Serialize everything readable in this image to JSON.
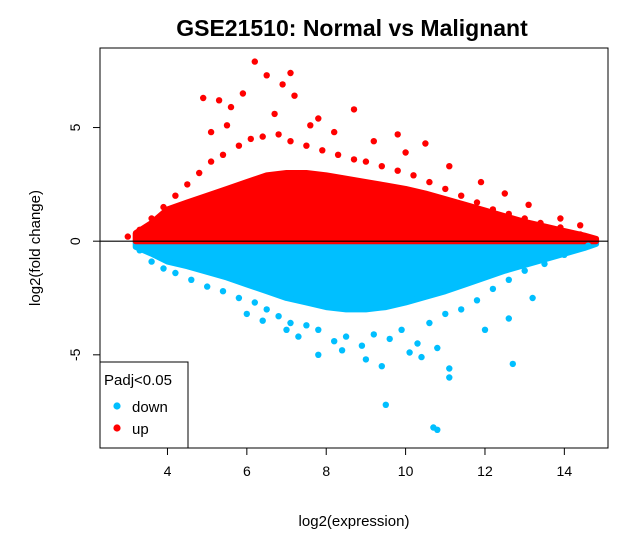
{
  "chart_data": {
    "type": "scatter",
    "title": "GSE21510: Normal vs Malignant",
    "xlabel": "log2(expression)",
    "ylabel": "log2(fold change)",
    "xlim": [
      2.3,
      15.1
    ],
    "ylim": [
      -9.1,
      8.5
    ],
    "x_ticks": [
      "4",
      "6",
      "8",
      "10",
      "12",
      "14"
    ],
    "y_ticks": [
      "-5",
      "0",
      "5"
    ],
    "hline": 0,
    "grid": false,
    "legend": {
      "title": "Padj<0.05",
      "position": "bottom-left",
      "entries": [
        {
          "label": "down",
          "color": "#00BFFF"
        },
        {
          "label": "up",
          "color": "#FF0000"
        }
      ]
    },
    "series": [
      {
        "name": "down",
        "color": "#00BFFF",
        "points": [
          [
            3.3,
            -0.4
          ],
          [
            3.6,
            -0.9
          ],
          [
            3.9,
            -1.2
          ],
          [
            4.2,
            -1.4
          ],
          [
            4.6,
            -1.7
          ],
          [
            5.0,
            -2.0
          ],
          [
            5.4,
            -2.2
          ],
          [
            5.8,
            -2.5
          ],
          [
            6.2,
            -2.7
          ],
          [
            6.5,
            -3.0
          ],
          [
            6.8,
            -3.3
          ],
          [
            7.1,
            -3.6
          ],
          [
            7.5,
            -3.7
          ],
          [
            7.8,
            -3.9
          ],
          [
            8.2,
            -4.4
          ],
          [
            8.5,
            -4.2
          ],
          [
            8.9,
            -4.6
          ],
          [
            9.2,
            -4.1
          ],
          [
            9.6,
            -4.3
          ],
          [
            9.9,
            -3.9
          ],
          [
            10.3,
            -4.5
          ],
          [
            10.6,
            -3.6
          ],
          [
            11.0,
            -3.2
          ],
          [
            11.4,
            -3.0
          ],
          [
            11.8,
            -2.6
          ],
          [
            12.2,
            -2.1
          ],
          [
            12.6,
            -1.7
          ],
          [
            13.0,
            -1.3
          ],
          [
            13.5,
            -1.0
          ],
          [
            14.0,
            -0.6
          ],
          [
            14.6,
            -0.2
          ],
          [
            7.8,
            -5.0
          ],
          [
            8.4,
            -4.8
          ],
          [
            9.0,
            -5.2
          ],
          [
            9.4,
            -5.5
          ],
          [
            10.1,
            -4.9
          ],
          [
            10.4,
            -5.1
          ],
          [
            10.8,
            -4.7
          ],
          [
            11.1,
            -5.6
          ],
          [
            11.1,
            -6.0
          ],
          [
            12.7,
            -5.4
          ],
          [
            9.5,
            -7.2
          ],
          [
            10.7,
            -8.2
          ],
          [
            10.8,
            -8.3
          ],
          [
            12.0,
            -3.9
          ],
          [
            12.6,
            -3.4
          ],
          [
            13.2,
            -2.5
          ],
          [
            6.0,
            -3.2
          ],
          [
            6.4,
            -3.5
          ],
          [
            7.0,
            -3.9
          ],
          [
            7.3,
            -4.2
          ]
        ]
      },
      {
        "name": "up",
        "color": "#FF0000",
        "points": [
          [
            3.0,
            0.2
          ],
          [
            3.3,
            0.5
          ],
          [
            3.6,
            1.0
          ],
          [
            3.9,
            1.5
          ],
          [
            4.2,
            2.0
          ],
          [
            4.5,
            2.5
          ],
          [
            4.8,
            3.0
          ],
          [
            5.1,
            3.5
          ],
          [
            5.4,
            3.8
          ],
          [
            5.8,
            4.2
          ],
          [
            6.1,
            4.5
          ],
          [
            6.4,
            4.6
          ],
          [
            6.8,
            4.7
          ],
          [
            7.1,
            4.4
          ],
          [
            7.5,
            4.2
          ],
          [
            7.9,
            4.0
          ],
          [
            8.3,
            3.8
          ],
          [
            8.7,
            3.6
          ],
          [
            9.0,
            3.5
          ],
          [
            9.4,
            3.3
          ],
          [
            9.8,
            3.1
          ],
          [
            10.2,
            2.9
          ],
          [
            10.6,
            2.6
          ],
          [
            11.0,
            2.3
          ],
          [
            11.4,
            2.0
          ],
          [
            11.8,
            1.7
          ],
          [
            12.2,
            1.4
          ],
          [
            12.6,
            1.2
          ],
          [
            13.0,
            1.0
          ],
          [
            13.4,
            0.8
          ],
          [
            13.9,
            0.6
          ],
          [
            14.4,
            0.3
          ],
          [
            14.7,
            0.1
          ],
          [
            4.9,
            6.3
          ],
          [
            5.3,
            6.2
          ],
          [
            5.6,
            5.9
          ],
          [
            5.9,
            6.5
          ],
          [
            6.2,
            7.9
          ],
          [
            6.5,
            7.3
          ],
          [
            6.9,
            6.9
          ],
          [
            7.1,
            7.4
          ],
          [
            7.2,
            6.4
          ],
          [
            7.8,
            5.4
          ],
          [
            8.7,
            5.8
          ],
          [
            9.8,
            4.7
          ],
          [
            10.5,
            4.3
          ],
          [
            11.1,
            3.3
          ],
          [
            11.9,
            2.6
          ],
          [
            12.5,
            2.1
          ],
          [
            13.1,
            1.6
          ],
          [
            13.9,
            1.0
          ],
          [
            14.4,
            0.7
          ],
          [
            5.1,
            4.8
          ],
          [
            5.5,
            5.1
          ],
          [
            6.7,
            5.6
          ],
          [
            7.6,
            5.1
          ],
          [
            8.2,
            4.8
          ],
          [
            9.2,
            4.4
          ],
          [
            10.0,
            3.9
          ]
        ]
      }
    ],
    "density": [
      {
        "x": 3.2,
        "up": 0.35,
        "down": 0.25
      },
      {
        "x": 3.6,
        "up": 0.8,
        "down": 0.55
      },
      {
        "x": 4.0,
        "up": 1.4,
        "down": 0.9
      },
      {
        "x": 4.5,
        "up": 1.7,
        "down": 1.1
      },
      {
        "x": 5.0,
        "up": 2.0,
        "down": 1.35
      },
      {
        "x": 5.5,
        "up": 2.3,
        "down": 1.6
      },
      {
        "x": 6.0,
        "up": 2.6,
        "down": 1.9
      },
      {
        "x": 6.5,
        "up": 2.9,
        "down": 2.2
      },
      {
        "x": 7.0,
        "up": 3.0,
        "down": 2.5
      },
      {
        "x": 7.5,
        "up": 3.0,
        "down": 2.7
      },
      {
        "x": 8.0,
        "up": 2.9,
        "down": 2.9
      },
      {
        "x": 8.5,
        "up": 2.75,
        "down": 3.0
      },
      {
        "x": 9.0,
        "up": 2.6,
        "down": 3.0
      },
      {
        "x": 9.5,
        "up": 2.45,
        "down": 2.9
      },
      {
        "x": 10.0,
        "up": 2.3,
        "down": 2.7
      },
      {
        "x": 10.5,
        "up": 2.1,
        "down": 2.45
      },
      {
        "x": 11.0,
        "up": 1.85,
        "down": 2.2
      },
      {
        "x": 11.5,
        "up": 1.6,
        "down": 1.9
      },
      {
        "x": 12.0,
        "up": 1.35,
        "down": 1.6
      },
      {
        "x": 12.5,
        "up": 1.1,
        "down": 1.3
      },
      {
        "x": 13.0,
        "up": 0.85,
        "down": 1.05
      },
      {
        "x": 13.5,
        "up": 0.65,
        "down": 0.8
      },
      {
        "x": 14.0,
        "up": 0.45,
        "down": 0.55
      },
      {
        "x": 14.5,
        "up": 0.25,
        "down": 0.3
      },
      {
        "x": 14.8,
        "up": 0.1,
        "down": 0.12
      }
    ]
  }
}
